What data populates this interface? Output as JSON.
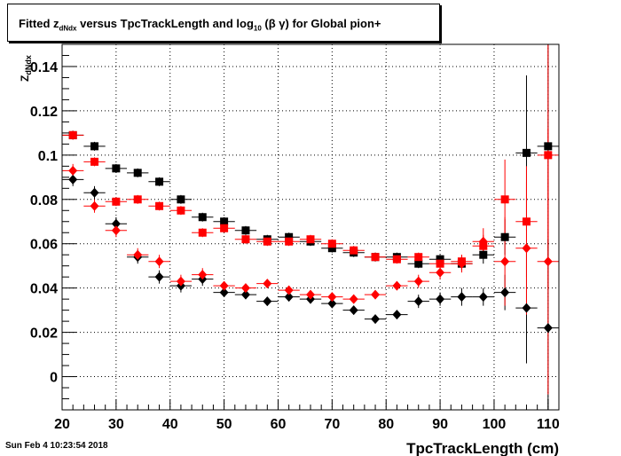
{
  "title": {
    "prefix": "Fitted  z",
    "sub1": "dNdx",
    "mid": " versus TpcTrackLength and log",
    "sub2": "10",
    "suffix": " (β γ) for Global pion+"
  },
  "timestamp": "Sun Feb  4 10:23:54 2018",
  "chart_data": {
    "type": "scatter",
    "title": "Fitted z_dNdx versus TpcTrackLength and log10 (β γ) for Global pion+",
    "xlabel": "TpcTrackLength (cm)",
    "ylabel": "Z_dNdx",
    "xlim": [
      20,
      112
    ],
    "ylim": [
      -0.015,
      0.15
    ],
    "xticks": [
      20,
      30,
      40,
      50,
      60,
      70,
      80,
      90,
      100,
      110
    ],
    "yticks": [
      0,
      0.02,
      0.04,
      0.06,
      0.08,
      0.1,
      0.12,
      0.14
    ],
    "ytick_labels": [
      "0",
      "0.02",
      "0.04",
      "0.06",
      "0.08",
      "0.1",
      "0.12",
      "0.14"
    ],
    "grid": true,
    "x_bin_half_width": 2,
    "series": [
      {
        "marker": "square",
        "color": "#000000",
        "x": [
          22,
          26,
          30,
          34,
          38,
          42,
          46,
          50,
          54,
          58,
          62,
          66,
          70,
          74,
          78,
          82,
          86,
          90,
          94,
          98,
          102,
          106,
          110
        ],
        "y": [
          0.109,
          0.104,
          0.094,
          0.092,
          0.088,
          0.08,
          0.072,
          0.07,
          0.066,
          0.062,
          0.063,
          0.061,
          0.058,
          0.056,
          0.054,
          0.054,
          0.051,
          0.053,
          0.051,
          0.055,
          0.063,
          0.101,
          0.104
        ],
        "yerr": [
          0.002,
          0.002,
          0.002,
          0.002,
          0.002,
          0.002,
          0.002,
          0.002,
          0.002,
          0.002,
          0.002,
          0.002,
          0.002,
          0.002,
          0.002,
          0.002,
          0.002,
          0.002,
          0.003,
          0.004,
          0.008,
          0.035,
          0.05
        ]
      },
      {
        "marker": "square",
        "color": "#ff0000",
        "x": [
          22,
          26,
          30,
          34,
          38,
          42,
          46,
          50,
          54,
          58,
          62,
          66,
          70,
          74,
          78,
          82,
          86,
          90,
          94,
          98,
          102,
          106,
          110
        ],
        "y": [
          0.109,
          0.097,
          0.079,
          0.08,
          0.077,
          0.075,
          0.065,
          0.067,
          0.062,
          0.061,
          0.061,
          0.062,
          0.06,
          0.057,
          0.054,
          0.053,
          0.054,
          0.051,
          0.052,
          0.059,
          0.08,
          0.07,
          0.1
        ],
        "yerr": [
          0.002,
          0.002,
          0.002,
          0.002,
          0.002,
          0.002,
          0.002,
          0.002,
          0.002,
          0.002,
          0.002,
          0.002,
          0.002,
          0.002,
          0.002,
          0.002,
          0.002,
          0.002,
          0.003,
          0.005,
          0.018,
          0.025,
          0.06
        ]
      },
      {
        "marker": "diamond",
        "color": "#000000",
        "x": [
          22,
          26,
          30,
          34,
          38,
          42,
          46,
          50,
          54,
          58,
          62,
          66,
          70,
          74,
          78,
          82,
          86,
          90,
          94,
          98,
          102,
          106,
          110
        ],
        "y": [
          0.089,
          0.083,
          0.069,
          0.054,
          0.045,
          0.041,
          0.044,
          0.038,
          0.037,
          0.034,
          0.036,
          0.035,
          0.033,
          0.03,
          0.026,
          0.028,
          0.034,
          0.035,
          0.036,
          0.036,
          0.038,
          0.031,
          0.022
        ],
        "yerr": [
          0.003,
          0.003,
          0.003,
          0.003,
          0.003,
          0.003,
          0.003,
          0.002,
          0.002,
          0.002,
          0.002,
          0.002,
          0.002,
          0.002,
          0.002,
          0.002,
          0.003,
          0.003,
          0.004,
          0.004,
          0.008,
          0.025,
          0.04
        ]
      },
      {
        "marker": "diamond",
        "color": "#ff0000",
        "x": [
          22,
          26,
          30,
          34,
          38,
          42,
          46,
          50,
          54,
          58,
          62,
          66,
          70,
          74,
          78,
          82,
          86,
          90,
          94,
          98,
          102,
          106,
          110
        ],
        "y": [
          0.093,
          0.077,
          0.066,
          0.055,
          0.052,
          0.043,
          0.046,
          0.041,
          0.04,
          0.042,
          0.039,
          0.037,
          0.036,
          0.035,
          0.037,
          0.041,
          0.043,
          0.047,
          0.051,
          0.061,
          0.052,
          0.058,
          0.052
        ],
        "yerr": [
          0.003,
          0.003,
          0.003,
          0.003,
          0.003,
          0.003,
          0.003,
          0.002,
          0.002,
          0.002,
          0.002,
          0.002,
          0.002,
          0.002,
          0.002,
          0.002,
          0.003,
          0.003,
          0.004,
          0.006,
          0.02,
          0.03,
          0.06
        ]
      }
    ]
  }
}
